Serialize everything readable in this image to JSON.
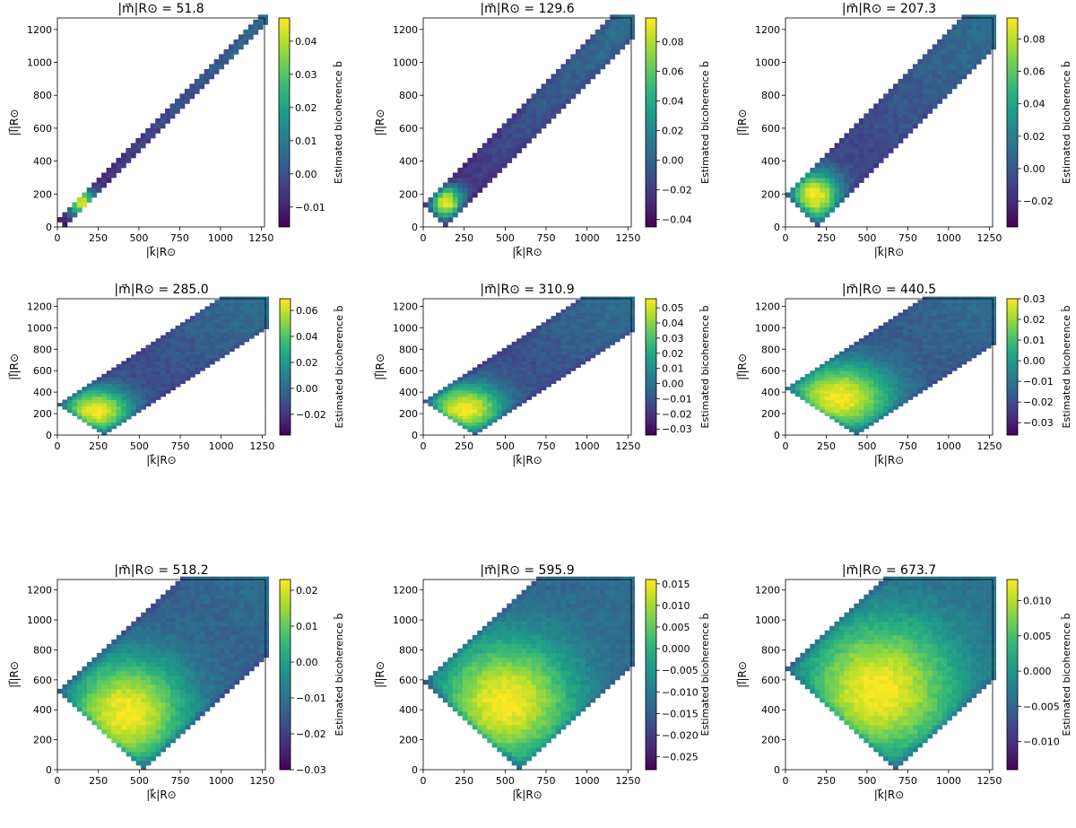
{
  "figure": {
    "colormap": "viridis",
    "colormap_stops": [
      "#440154",
      "#482878",
      "#3e4989",
      "#31688e",
      "#26828e",
      "#1f9e89",
      "#35b779",
      "#6ece58",
      "#b5de2b",
      "#fde725"
    ]
  },
  "chart_data": [
    {
      "type": "heatmap",
      "title": "|m⃗|R⊙ = 51.8",
      "m": 51.8,
      "xlabel": "|k⃗|R⊙",
      "ylabel": "|l⃗|R⊙",
      "xlim": [
        0,
        1270
      ],
      "ylim": [
        0,
        1270
      ],
      "xticks": [
        "0",
        "250",
        "500",
        "750",
        "1000",
        "1250"
      ],
      "yticks": [
        "0",
        "200",
        "400",
        "600",
        "800",
        "1000",
        "1200"
      ],
      "colorbar_label": "Estimated bicoherence b̂",
      "vmin": -0.016,
      "vmax": 0.047,
      "colorbar_ticks": [
        "−0.01",
        "0.00",
        "0.01",
        "0.02",
        "0.03",
        "0.04"
      ],
      "colorbar_tick_values": [
        -0.01,
        0.0,
        0.01,
        0.02,
        0.03,
        0.04
      ],
      "peak": [
        150,
        150
      ],
      "peak_value": 0.047
    },
    {
      "type": "heatmap",
      "title": "|m⃗|R⊙ = 129.6",
      "m": 129.6,
      "xlabel": "|k⃗|R⊙",
      "ylabel": "|l⃗|R⊙",
      "xlim": [
        0,
        1270
      ],
      "ylim": [
        0,
        1270
      ],
      "xticks": [
        "0",
        "250",
        "500",
        "750",
        "1000",
        "1250"
      ],
      "yticks": [
        "0",
        "200",
        "400",
        "600",
        "800",
        "1000",
        "1200"
      ],
      "colorbar_label": "Estimated bicoherence b̂",
      "vmin": -0.045,
      "vmax": 0.096,
      "colorbar_ticks": [
        "−0.04",
        "−0.02",
        "0.00",
        "0.02",
        "0.04",
        "0.06",
        "0.08"
      ],
      "colorbar_tick_values": [
        -0.04,
        -0.02,
        0.0,
        0.02,
        0.04,
        0.06,
        0.08
      ],
      "peak": [
        140,
        150
      ],
      "peak_value": 0.096
    },
    {
      "type": "heatmap",
      "title": "|m⃗|R⊙ = 207.3",
      "m": 207.3,
      "xlabel": "|k⃗|R⊙",
      "ylabel": "|l⃗|R⊙",
      "xlim": [
        0,
        1270
      ],
      "ylim": [
        0,
        1270
      ],
      "xticks": [
        "0",
        "250",
        "500",
        "750",
        "1000",
        "1250"
      ],
      "yticks": [
        "0",
        "200",
        "400",
        "600",
        "800",
        "1000",
        "1200"
      ],
      "colorbar_label": "Estimated bicoherence b̂",
      "vmin": -0.036,
      "vmax": 0.093,
      "colorbar_ticks": [
        "−0.02",
        "0.00",
        "0.02",
        "0.04",
        "0.06",
        "0.08"
      ],
      "colorbar_tick_values": [
        -0.02,
        0.0,
        0.02,
        0.04,
        0.06,
        0.08
      ],
      "peak": [
        180,
        190
      ],
      "peak_value": 0.093
    },
    {
      "type": "heatmap",
      "title": "|m⃗|R⊙ = 285.0",
      "m": 285.0,
      "xlabel": "|k⃗|R⊙",
      "ylabel": "|l⃗|R⊙",
      "xlim": [
        0,
        1270
      ],
      "ylim": [
        0,
        1270
      ],
      "xticks": [
        "0",
        "250",
        "500",
        "750",
        "1000",
        "1250"
      ],
      "yticks": [
        "0",
        "200",
        "400",
        "600",
        "800",
        "1000",
        "1200"
      ],
      "colorbar_label": "Estimated bicoherence b̂",
      "vmin": -0.036,
      "vmax": 0.069,
      "colorbar_ticks": [
        "−0.02",
        "0.00",
        "0.02",
        "0.04",
        "0.06"
      ],
      "colorbar_tick_values": [
        -0.02,
        0.0,
        0.02,
        0.04,
        0.06
      ],
      "peak": [
        240,
        230
      ],
      "peak_value": 0.069
    },
    {
      "type": "heatmap",
      "title": "|m⃗|R⊙ = 310.9",
      "m": 310.9,
      "xlabel": "|k⃗|R⊙",
      "ylabel": "|l⃗|R⊙",
      "xlim": [
        0,
        1270
      ],
      "ylim": [
        0,
        1270
      ],
      "xticks": [
        "0",
        "250",
        "500",
        "750",
        "1000",
        "1250"
      ],
      "yticks": [
        "0",
        "200",
        "400",
        "600",
        "800",
        "1000",
        "1200"
      ],
      "colorbar_label": "Estimated bicoherence b̂",
      "vmin": -0.034,
      "vmax": 0.056,
      "colorbar_ticks": [
        "−0.03",
        "−0.02",
        "−0.01",
        "0.00",
        "0.01",
        "0.02",
        "0.03",
        "0.04",
        "0.05"
      ],
      "colorbar_tick_values": [
        -0.03,
        -0.02,
        -0.01,
        0.0,
        0.01,
        0.02,
        0.03,
        0.04,
        0.05
      ],
      "peak": [
        260,
        250
      ],
      "peak_value": 0.056
    },
    {
      "type": "heatmap",
      "title": "|m⃗|R⊙ = 440.5",
      "m": 440.5,
      "xlabel": "|k⃗|R⊙",
      "ylabel": "|l⃗|R⊙",
      "xlim": [
        0,
        1270
      ],
      "ylim": [
        0,
        1270
      ],
      "xticks": [
        "0",
        "250",
        "500",
        "750",
        "1000",
        "1250"
      ],
      "yticks": [
        "0",
        "200",
        "400",
        "600",
        "800",
        "1000",
        "1200"
      ],
      "colorbar_label": "Estimated bicoherence b̂",
      "vmin": -0.036,
      "vmax": 0.03,
      "colorbar_ticks": [
        "−0.03",
        "−0.02",
        "−0.01",
        "0.00",
        "0.01",
        "0.02",
        "0.03"
      ],
      "colorbar_tick_values": [
        -0.03,
        -0.02,
        -0.01,
        0.0,
        0.01,
        0.02,
        0.03
      ],
      "peak": [
        330,
        350
      ],
      "peak_value": 0.03
    },
    {
      "type": "heatmap",
      "title": "|m⃗|R⊙ = 518.2",
      "m": 518.2,
      "xlabel": "|k⃗|R⊙",
      "ylabel": "|l⃗|R⊙",
      "xlim": [
        0,
        1270
      ],
      "ylim": [
        0,
        1270
      ],
      "xticks": [
        "0",
        "250",
        "500",
        "750",
        "1000",
        "1250"
      ],
      "yticks": [
        "0",
        "200",
        "400",
        "600",
        "800",
        "1000",
        "1200"
      ],
      "colorbar_label": "Estimated bicoherence b̂",
      "vmin": -0.03,
      "vmax": 0.023,
      "colorbar_ticks": [
        "−0.03",
        "−0.02",
        "−0.01",
        "0.00",
        "0.01",
        "0.02"
      ],
      "colorbar_tick_values": [
        -0.03,
        -0.02,
        -0.01,
        0.0,
        0.01,
        0.02
      ],
      "peak": [
        420,
        380
      ],
      "peak_value": 0.023
    },
    {
      "type": "heatmap",
      "title": "|m⃗|R⊙ = 595.9",
      "m": 595.9,
      "xlabel": "|k⃗|R⊙",
      "ylabel": "|l⃗|R⊙",
      "xlim": [
        0,
        1270
      ],
      "ylim": [
        0,
        1270
      ],
      "xticks": [
        "0",
        "250",
        "500",
        "750",
        "1000",
        "1250"
      ],
      "yticks": [
        "0",
        "200",
        "400",
        "600",
        "800",
        "1000",
        "1200"
      ],
      "colorbar_label": "Estimated bicoherence b̂",
      "vmin": -0.028,
      "vmax": 0.016,
      "colorbar_ticks": [
        "−0.025",
        "−0.020",
        "−0.015",
        "−0.010",
        "−0.005",
        "0.000",
        "0.005",
        "0.010",
        "0.015"
      ],
      "colorbar_tick_values": [
        -0.025,
        -0.02,
        -0.015,
        -0.01,
        -0.005,
        0.0,
        0.005,
        0.01,
        0.015
      ],
      "peak": [
        500,
        450
      ],
      "peak_value": 0.016
    },
    {
      "type": "heatmap",
      "title": "|m⃗|R⊙ = 673.7",
      "m": 673.7,
      "xlabel": "|k⃗|R⊙",
      "ylabel": "|l⃗|R⊙",
      "xlim": [
        0,
        1270
      ],
      "ylim": [
        0,
        1270
      ],
      "xticks": [
        "0",
        "250",
        "500",
        "750",
        "1000",
        "1250"
      ],
      "yticks": [
        "0",
        "200",
        "400",
        "600",
        "800",
        "1000",
        "1200"
      ],
      "colorbar_label": "Estimated bicoherence b̂",
      "vmin": -0.014,
      "vmax": 0.013,
      "colorbar_ticks": [
        "−0.010",
        "−0.005",
        "0.000",
        "0.005",
        "0.010"
      ],
      "colorbar_tick_values": [
        -0.01,
        -0.005,
        0.0,
        0.005,
        0.01
      ],
      "peak": [
        570,
        530
      ],
      "peak_value": 0.013
    }
  ]
}
